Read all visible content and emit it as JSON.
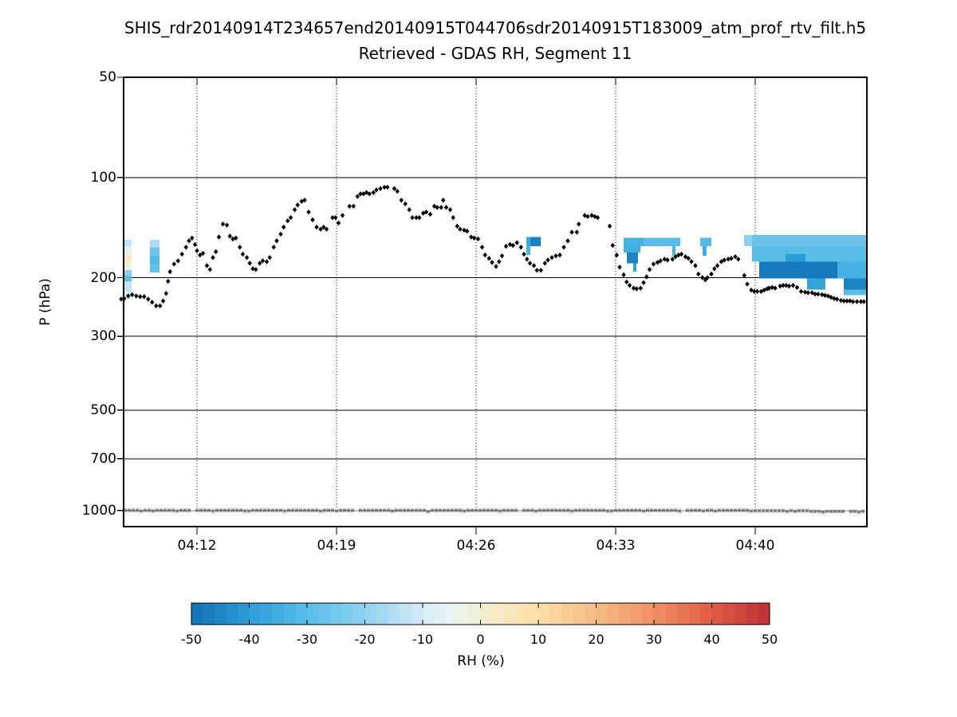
{
  "figure": {
    "title": "SHIS_rdr20140914T234657end20140915T044706sdr20140915T183009_atm_prof_rtv_filt.h5",
    "subtitle": "Retrieved - GDAS RH, Segment 11",
    "background_color": "#ffffff"
  },
  "axes": {
    "ylabel": "P (hPa)",
    "y_scale": "log",
    "y_range_hpa": [
      50,
      1123
    ],
    "x_range_minutes": [
      8.32,
      45.6
    ],
    "y_ticks": [
      {
        "value": 50,
        "label": "50"
      },
      {
        "value": 100,
        "label": "100"
      },
      {
        "value": 200,
        "label": "200"
      },
      {
        "value": 300,
        "label": "300"
      },
      {
        "value": 500,
        "label": "500"
      },
      {
        "value": 700,
        "label": "700"
      },
      {
        "value": 1000,
        "label": "1000"
      }
    ],
    "x_ticks": [
      {
        "minutes": 12,
        "label": "04:12"
      },
      {
        "minutes": 19,
        "label": "04:19"
      },
      {
        "minutes": 26,
        "label": "04:26"
      },
      {
        "minutes": 33,
        "label": "04:33"
      },
      {
        "minutes": 40,
        "label": "04:40"
      }
    ],
    "x_grid_style": "dotted",
    "y_grid_style": "solid",
    "y_gridlines_hpa": [
      100,
      200,
      300,
      500,
      700
    ]
  },
  "colorbar": {
    "label": "RH (%)",
    "min": -50,
    "max": 50,
    "ticks": [
      -50,
      -40,
      -30,
      -20,
      -10,
      0,
      10,
      20,
      30,
      40,
      50
    ],
    "anchors": [
      {
        "value": -50,
        "color": "#1270b5"
      },
      {
        "value": -40,
        "color": "#2b9ed8"
      },
      {
        "value": -30,
        "color": "#59bde8"
      },
      {
        "value": -20,
        "color": "#8fd2ef"
      },
      {
        "value": -10,
        "color": "#d5ecf6"
      },
      {
        "value": -5,
        "color": "#e9f5f2"
      },
      {
        "value": 0,
        "color": "#f3efd1"
      },
      {
        "value": 10,
        "color": "#fbdfa7"
      },
      {
        "value": 20,
        "color": "#f7bc84"
      },
      {
        "value": 30,
        "color": "#ef9062"
      },
      {
        "value": 40,
        "color": "#e05c44"
      },
      {
        "value": 50,
        "color": "#bd3036"
      }
    ]
  },
  "chart_data": {
    "type": "heatmap",
    "title": "Retrieved - GDAS RH, Segment 11",
    "value_units": "RH difference (%)",
    "x_units": "minutes after 04:00 UTC",
    "y_units": "hPa",
    "xlabel_ticks": [
      "04:12",
      "04:19",
      "04:26",
      "04:33",
      "04:40"
    ],
    "series": [
      {
        "name": "retrieved_level_trace",
        "marker": "diamond",
        "color": "#000000",
        "points": [
          [
            8.2,
            232
          ],
          [
            8.35,
            231
          ],
          [
            8.55,
            227
          ],
          [
            8.75,
            225
          ],
          [
            8.95,
            227
          ],
          [
            9.15,
            228
          ],
          [
            9.35,
            228
          ],
          [
            9.55,
            232
          ],
          [
            9.75,
            237
          ],
          [
            9.95,
            243
          ],
          [
            10.15,
            243
          ],
          [
            10.3,
            235
          ],
          [
            10.45,
            223
          ],
          [
            10.55,
            205
          ],
          [
            10.65,
            192
          ],
          [
            10.85,
            182
          ],
          [
            11.05,
            178
          ],
          [
            11.25,
            170
          ],
          [
            11.45,
            162
          ],
          [
            11.6,
            155
          ],
          [
            11.75,
            152
          ],
          [
            11.9,
            159
          ],
          [
            12.0,
            166
          ],
          [
            12.15,
            171
          ],
          [
            12.3,
            169
          ],
          [
            12.5,
            184
          ],
          [
            12.65,
            189
          ],
          [
            12.8,
            174
          ],
          [
            12.95,
            167
          ],
          [
            13.1,
            151
          ],
          [
            13.3,
            138
          ],
          [
            13.5,
            139
          ],
          [
            13.65,
            150
          ],
          [
            13.8,
            153
          ],
          [
            13.95,
            152
          ],
          [
            14.15,
            162
          ],
          [
            14.3,
            170
          ],
          [
            14.5,
            174
          ],
          [
            14.65,
            181
          ],
          [
            14.8,
            188
          ],
          [
            14.95,
            189
          ],
          [
            15.15,
            181
          ],
          [
            15.3,
            178
          ],
          [
            15.5,
            179
          ],
          [
            15.65,
            174
          ],
          [
            15.85,
            162
          ],
          [
            16.0,
            155
          ],
          [
            16.2,
            148
          ],
          [
            16.35,
            141
          ],
          [
            16.55,
            135
          ],
          [
            16.7,
            132
          ],
          [
            16.9,
            125
          ],
          [
            17.05,
            121
          ],
          [
            17.25,
            118
          ],
          [
            17.4,
            117
          ],
          [
            17.6,
            127
          ],
          [
            17.8,
            134
          ],
          [
            18.0,
            141
          ],
          [
            18.2,
            143
          ],
          [
            18.35,
            141
          ],
          [
            18.5,
            143
          ],
          [
            18.8,
            132
          ],
          [
            18.95,
            132
          ],
          [
            19.1,
            137
          ],
          [
            19.3,
            130
          ],
          [
            19.65,
            122
          ],
          [
            19.85,
            122
          ],
          [
            20.05,
            114
          ],
          [
            20.2,
            112
          ],
          [
            20.35,
            112
          ],
          [
            20.5,
            111
          ],
          [
            20.65,
            112
          ],
          [
            20.85,
            111
          ],
          [
            21.0,
            109
          ],
          [
            21.2,
            108
          ],
          [
            21.4,
            107
          ],
          [
            21.55,
            107
          ],
          [
            21.9,
            108
          ],
          [
            22.05,
            110
          ],
          [
            22.25,
            117
          ],
          [
            22.45,
            120
          ],
          [
            22.65,
            125
          ],
          [
            22.8,
            132
          ],
          [
            23.0,
            132
          ],
          [
            23.15,
            132
          ],
          [
            23.35,
            128
          ],
          [
            23.5,
            127
          ],
          [
            23.7,
            129
          ],
          [
            23.9,
            122
          ],
          [
            24.05,
            123
          ],
          [
            24.25,
            123
          ],
          [
            24.35,
            117
          ],
          [
            24.5,
            123
          ],
          [
            24.7,
            125
          ],
          [
            24.85,
            132
          ],
          [
            25.05,
            140
          ],
          [
            25.2,
            143
          ],
          [
            25.4,
            144
          ],
          [
            25.55,
            145
          ],
          [
            25.75,
            151
          ],
          [
            25.9,
            152
          ],
          [
            26.1,
            153
          ],
          [
            26.3,
            162
          ],
          [
            26.45,
            171
          ],
          [
            26.65,
            175
          ],
          [
            26.8,
            180
          ],
          [
            27.0,
            185
          ],
          [
            27.15,
            179
          ],
          [
            27.3,
            172
          ],
          [
            27.5,
            161
          ],
          [
            27.7,
            159
          ],
          [
            27.85,
            160
          ],
          [
            28.05,
            157
          ],
          [
            28.25,
            162
          ],
          [
            28.4,
            170
          ],
          [
            28.55,
            176
          ],
          [
            28.7,
            181
          ],
          [
            28.9,
            184
          ],
          [
            29.05,
            190
          ],
          [
            29.25,
            190
          ],
          [
            29.45,
            181
          ],
          [
            29.6,
            177
          ],
          [
            29.8,
            174
          ],
          [
            30.0,
            172
          ],
          [
            30.2,
            171
          ],
          [
            30.4,
            162
          ],
          [
            30.6,
            155
          ],
          [
            30.8,
            146
          ],
          [
            31.05,
            146
          ],
          [
            31.15,
            138
          ],
          [
            31.45,
            130
          ],
          [
            31.6,
            131
          ],
          [
            31.8,
            130
          ],
          [
            31.95,
            131
          ],
          [
            32.1,
            132
          ],
          [
            32.7,
            140
          ],
          [
            32.85,
            160
          ],
          [
            33.05,
            171
          ],
          [
            33.2,
            186
          ],
          [
            33.4,
            196
          ],
          [
            33.55,
            206
          ],
          [
            33.7,
            211
          ],
          [
            33.9,
            215
          ],
          [
            34.05,
            216
          ],
          [
            34.25,
            215
          ],
          [
            34.4,
            207
          ],
          [
            34.55,
            199
          ],
          [
            34.7,
            189
          ],
          [
            34.9,
            182
          ],
          [
            35.1,
            180
          ],
          [
            35.25,
            178
          ],
          [
            35.45,
            176
          ],
          [
            35.6,
            177
          ],
          [
            35.85,
            176
          ],
          [
            36.0,
            173
          ],
          [
            36.15,
            171
          ],
          [
            36.3,
            170
          ],
          [
            36.5,
            173
          ],
          [
            36.65,
            175
          ],
          [
            36.8,
            179
          ],
          [
            37.0,
            184
          ],
          [
            37.15,
            195
          ],
          [
            37.35,
            200
          ],
          [
            37.5,
            203
          ],
          [
            37.6,
            200
          ],
          [
            37.8,
            195
          ],
          [
            37.95,
            188
          ],
          [
            38.1,
            184
          ],
          [
            38.3,
            179
          ],
          [
            38.45,
            177
          ],
          [
            38.65,
            176
          ],
          [
            38.8,
            175
          ],
          [
            39.0,
            173
          ],
          [
            39.15,
            176
          ],
          [
            39.45,
            197
          ],
          [
            39.6,
            209
          ],
          [
            39.8,
            218
          ],
          [
            39.95,
            220
          ],
          [
            40.1,
            220
          ],
          [
            40.3,
            220
          ],
          [
            40.45,
            218
          ],
          [
            40.6,
            216
          ],
          [
            40.7,
            215
          ],
          [
            40.85,
            214
          ],
          [
            41.0,
            215
          ],
          [
            41.25,
            212
          ],
          [
            41.4,
            211
          ],
          [
            41.55,
            211
          ],
          [
            41.7,
            212
          ],
          [
            41.9,
            211
          ],
          [
            42.1,
            214
          ],
          [
            42.3,
            220
          ],
          [
            42.5,
            221
          ],
          [
            42.65,
            222
          ],
          [
            42.85,
            222
          ],
          [
            43.0,
            224
          ],
          [
            43.15,
            224
          ],
          [
            43.35,
            225
          ],
          [
            43.5,
            226
          ],
          [
            43.65,
            227
          ],
          [
            43.8,
            229
          ],
          [
            43.95,
            231
          ],
          [
            44.1,
            232
          ],
          [
            44.3,
            234
          ],
          [
            44.45,
            235
          ],
          [
            44.6,
            235
          ],
          [
            44.75,
            235
          ],
          [
            44.9,
            236
          ],
          [
            45.1,
            236
          ],
          [
            45.3,
            236
          ],
          [
            45.45,
            236
          ]
        ]
      },
      {
        "name": "surface_pressure_trace",
        "marker": "asterisk",
        "color": "#6e6e6e",
        "line_color": "#8c8c8c",
        "constant_pressure_hpa": 1000,
        "t_start_minutes": 8.4,
        "t_end_minutes": 45.5
      }
    ],
    "patches_format": "[t0_minutes, t1_minutes, p_top_hpa, p_bottom_hpa, rh_diff_percent]",
    "patches": [
      [
        8.32,
        8.72,
        154,
        161,
        -13
      ],
      [
        8.32,
        8.72,
        161,
        170,
        -6
      ],
      [
        8.32,
        8.72,
        170,
        179,
        3
      ],
      [
        8.32,
        8.72,
        179,
        190,
        -1
      ],
      [
        8.32,
        8.72,
        190,
        197,
        -20
      ],
      [
        8.32,
        8.72,
        197,
        205,
        -30
      ],
      [
        8.32,
        8.72,
        205,
        220,
        -13
      ],
      [
        8.32,
        8.72,
        220,
        232,
        -8
      ],
      [
        9.64,
        10.12,
        154,
        162,
        -16
      ],
      [
        9.64,
        10.12,
        162,
        172,
        -26
      ],
      [
        9.64,
        10.12,
        172,
        182,
        -31
      ],
      [
        9.64,
        10.12,
        182,
        193,
        -28
      ],
      [
        28.52,
        28.72,
        151,
        161,
        -36
      ],
      [
        28.72,
        29.24,
        151,
        161,
        -47
      ],
      [
        28.52,
        28.72,
        161,
        171,
        -33
      ],
      [
        33.4,
        34.4,
        152,
        161,
        -34
      ],
      [
        34.4,
        36.24,
        152,
        161,
        -30
      ],
      [
        33.4,
        34.24,
        161,
        168,
        -35
      ],
      [
        33.56,
        34.12,
        168,
        181,
        -46
      ],
      [
        33.88,
        34.04,
        181,
        192,
        -39
      ],
      [
        35.84,
        36.0,
        161,
        172,
        -33
      ],
      [
        37.24,
        37.8,
        152,
        161,
        -31
      ],
      [
        37.36,
        37.56,
        161,
        172,
        -35
      ],
      [
        39.44,
        39.84,
        149,
        161,
        -20
      ],
      [
        39.84,
        45.6,
        149,
        161,
        -27
      ],
      [
        39.84,
        45.6,
        161,
        179,
        -30
      ],
      [
        41.52,
        42.52,
        170,
        181,
        -40
      ],
      [
        40.2,
        44.12,
        179,
        201,
        -48
      ],
      [
        44.12,
        45.6,
        179,
        201,
        -34
      ],
      [
        42.6,
        43.52,
        201,
        217,
        -38
      ],
      [
        44.44,
        45.6,
        201,
        217,
        -46
      ],
      [
        44.44,
        45.6,
        217,
        226,
        -30
      ]
    ]
  }
}
